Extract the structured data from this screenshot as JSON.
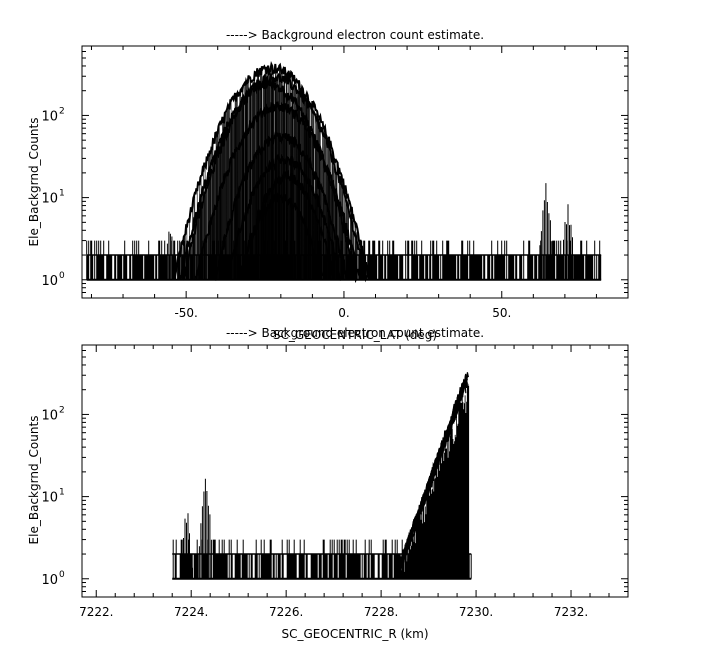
{
  "chart_data": [
    {
      "type": "line",
      "title": "-----> Background electron count estimate.",
      "xlabel": "SC_GEOCENTRIC_LAT (deg)",
      "ylabel": "Ele_Backgrnd_Counts",
      "xlim": [
        -83,
        90
      ],
      "ylim": [
        0.6,
        700
      ],
      "yscale": "log",
      "x_ticks": [
        {
          "value": -50,
          "label": "-50."
        },
        {
          "value": 0,
          "label": "0."
        },
        {
          "value": 50,
          "label": "50."
        }
      ],
      "y_ticks": [
        {
          "value": 1,
          "base": "10",
          "exp": "0"
        },
        {
          "value": 10,
          "base": "10",
          "exp": "1"
        },
        {
          "value": 100,
          "base": "10",
          "exp": "2"
        }
      ],
      "grid": false,
      "data_range": [
        -81.5,
        81.5
      ],
      "noise_floor": [
        1,
        3
      ],
      "series": [
        {
          "center": -23,
          "half_width": 31,
          "peak": 380
        },
        {
          "center": -22,
          "half_width": 29,
          "peak": 290
        },
        {
          "center": -24,
          "half_width": 28,
          "peak": 240
        },
        {
          "center": -21,
          "half_width": 26,
          "peak": 130
        },
        {
          "center": -20,
          "half_width": 21,
          "peak": 55
        },
        {
          "center": -19,
          "half_width": 18,
          "peak": 30
        },
        {
          "center": -18,
          "half_width": 15,
          "peak": 18
        },
        {
          "center": -20,
          "half_width": 13,
          "peak": 10
        }
      ],
      "spikes": [
        {
          "x": -55,
          "value": 5
        },
        {
          "x": 64,
          "value": 16
        },
        {
          "x": 71,
          "value": 9
        }
      ]
    },
    {
      "type": "line",
      "title": "-----> Background electron count estimate.",
      "xlabel": "SC_GEOCENTRIC_R (km)",
      "ylabel": "Ele_Backgrnd_Counts",
      "xlim": [
        7221.7,
        7233.2
      ],
      "ylim": [
        0.6,
        700
      ],
      "yscale": "log",
      "x_ticks": [
        {
          "value": 7222,
          "label": "7222."
        },
        {
          "value": 7224,
          "label": "7224."
        },
        {
          "value": 7226,
          "label": "7226."
        },
        {
          "value": 7228,
          "label": "7228."
        },
        {
          "value": 7230,
          "label": "7230."
        },
        {
          "value": 7232,
          "label": "7232."
        }
      ],
      "y_ticks": [
        {
          "value": 1,
          "base": "10",
          "exp": "0"
        },
        {
          "value": 10,
          "base": "10",
          "exp": "1"
        },
        {
          "value": 100,
          "base": "10",
          "exp": "2"
        }
      ],
      "grid": false,
      "data_range": [
        7223.6,
        7229.9
      ],
      "noise_floor": [
        1,
        3
      ],
      "spikes": [
        {
          "x": 7224.3,
          "value": 17
        },
        {
          "x": 7223.9,
          "value": 8
        }
      ],
      "rise_start": 7228.3,
      "rise_end": 7229.85,
      "rise_peak": 400
    }
  ]
}
